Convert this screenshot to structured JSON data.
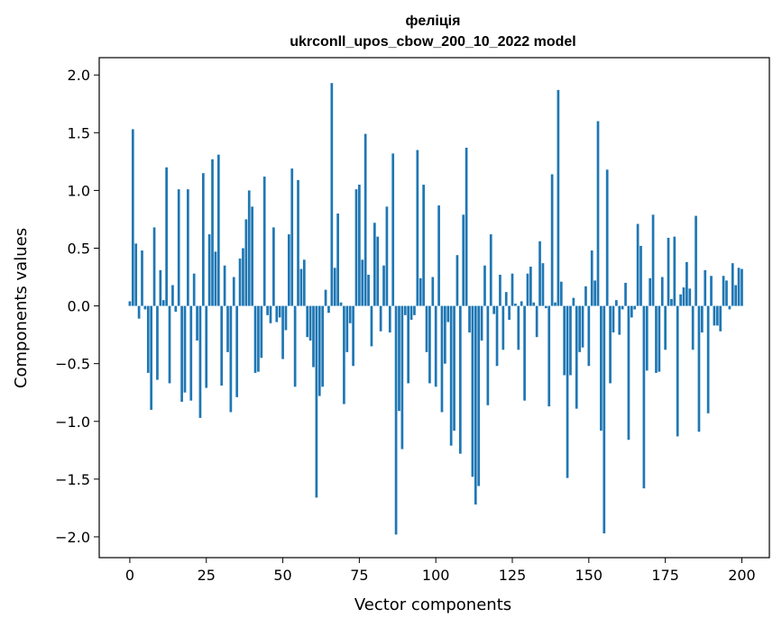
{
  "chart_data": {
    "type": "bar",
    "title": "фелiцiя",
    "subtitle": "ukrconll_upos_cbow_200_10_2022 model",
    "xlabel": "Vector components",
    "ylabel": "Components values",
    "xlim": [
      -10,
      209
    ],
    "ylim": [
      -2.18,
      2.15
    ],
    "xticks": [
      0,
      25,
      50,
      75,
      100,
      125,
      150,
      175,
      200
    ],
    "yticks": [
      2.0,
      1.5,
      1.0,
      0.5,
      0.0,
      -0.5,
      -1.0,
      -1.5,
      -2.0
    ],
    "ytick_labels": [
      "2.0",
      "1.5",
      "1.0",
      "0.5",
      "0.0",
      "−0.5",
      "−1.0",
      "−1.5",
      "−2.0"
    ],
    "grid": false,
    "bar_color": "#1f77b4",
    "values": [
      0.04,
      1.53,
      0.54,
      -0.11,
      0.48,
      -0.03,
      -0.58,
      -0.9,
      0.68,
      -0.64,
      0.31,
      0.05,
      1.2,
      -0.67,
      0.18,
      -0.05,
      1.01,
      -0.83,
      -0.75,
      1.01,
      -0.82,
      0.28,
      -0.3,
      -0.97,
      1.15,
      -0.71,
      0.62,
      1.27,
      0.47,
      1.31,
      -0.69,
      0.35,
      -0.4,
      -0.92,
      0.25,
      -0.79,
      0.41,
      0.5,
      0.75,
      1.0,
      0.86,
      -0.58,
      -0.57,
      -0.45,
      1.12,
      -0.08,
      -0.15,
      0.68,
      -0.14,
      -0.1,
      -0.46,
      -0.21,
      0.62,
      1.19,
      -0.7,
      1.09,
      0.32,
      0.4,
      -0.27,
      -0.3,
      -0.53,
      -1.66,
      -0.78,
      -0.7,
      0.14,
      -0.06,
      1.93,
      0.33,
      0.8,
      0.03,
      -0.85,
      -0.4,
      -0.15,
      -0.52,
      1.01,
      1.05,
      0.4,
      1.49,
      0.27,
      -0.35,
      0.72,
      0.6,
      -0.22,
      0.35,
      0.86,
      -0.23,
      1.32,
      -1.98,
      -0.91,
      -1.24,
      -0.08,
      -0.67,
      -0.12,
      -0.08,
      1.35,
      0.24,
      1.05,
      -0.4,
      -0.67,
      0.25,
      -0.7,
      0.87,
      -0.92,
      -0.5,
      -0.14,
      -1.21,
      -1.08,
      0.44,
      -1.28,
      0.79,
      1.37,
      -0.23,
      -1.48,
      -1.72,
      -1.56,
      -0.3,
      0.35,
      -0.86,
      0.62,
      -0.07,
      -0.52,
      0.27,
      -0.38,
      0.12,
      -0.12,
      0.28,
      0.02,
      -0.38,
      0.04,
      -0.82,
      0.28,
      0.34,
      0.03,
      -0.27,
      0.56,
      0.37,
      -0.02,
      -0.87,
      1.14,
      0.03,
      1.87,
      0.21,
      -0.6,
      -1.49,
      -0.6,
      0.07,
      -0.89,
      -0.4,
      -0.36,
      0.17,
      -0.52,
      0.48,
      0.22,
      1.6,
      -1.08,
      -1.97,
      1.18,
      -0.67,
      -0.23,
      0.05,
      -0.25,
      -0.03,
      0.2,
      -1.16,
      -0.1,
      -0.03,
      0.71,
      0.52,
      -1.58,
      -0.56,
      0.24,
      0.79,
      -0.58,
      -0.57,
      0.25,
      -0.38,
      0.59,
      0.06,
      0.6,
      -1.13,
      0.1,
      0.16,
      0.38,
      0.15,
      -0.38,
      0.78,
      -1.09,
      -0.23,
      0.31,
      -0.93,
      0.26,
      -0.17,
      -0.17,
      -0.22,
      0.26,
      0.22,
      -0.03,
      0.37,
      0.18,
      0.33,
      0.32
    ]
  }
}
